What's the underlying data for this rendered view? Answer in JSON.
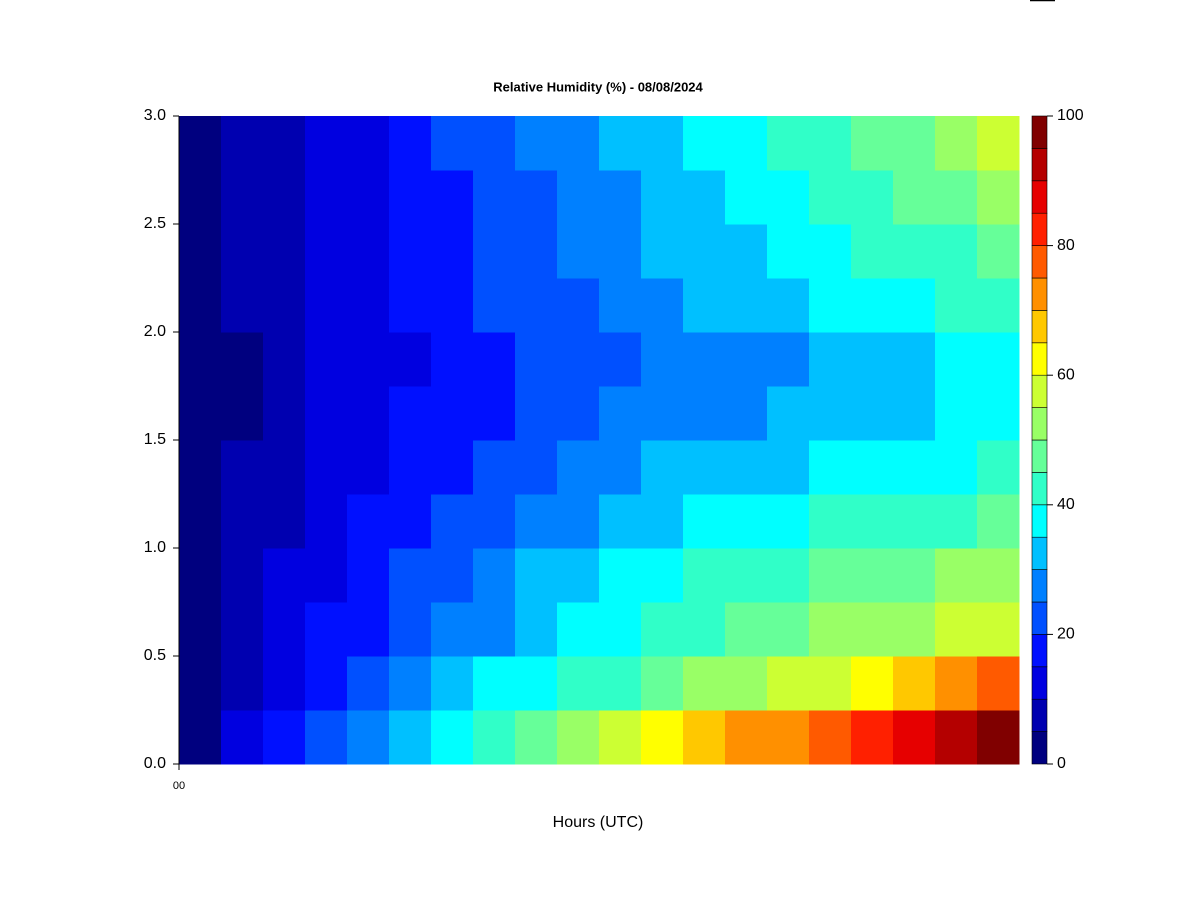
{
  "chart_data": {
    "type": "contour",
    "title": "Relative Humidity (%) - 08/08/2024",
    "x_label": "Hours (UTC)",
    "xlim": [
      0,
      20
    ],
    "xticks": [
      {
        "value": 0,
        "label": "00"
      }
    ],
    "ylim": [
      0,
      3
    ],
    "yticks": [
      {
        "value": 0,
        "label": "0.0"
      },
      {
        "value": 0.5,
        "label": "0.5"
      },
      {
        "value": 1,
        "label": "1.0"
      },
      {
        "value": 1.5,
        "label": "1.5"
      },
      {
        "value": 2,
        "label": "2.0"
      },
      {
        "value": 2.5,
        "label": "2.5"
      },
      {
        "value": 3,
        "label": "3.0"
      }
    ],
    "z": [
      [
        4,
        10,
        16,
        21,
        27,
        33,
        38,
        44,
        49,
        54,
        58,
        62,
        66,
        70,
        74,
        78,
        82,
        86,
        90,
        95
      ],
      [
        3,
        8,
        13,
        18,
        23,
        27,
        31,
        35,
        38,
        41,
        44,
        47,
        50,
        53,
        56,
        59,
        62,
        65,
        70,
        76
      ],
      [
        3,
        7,
        11,
        15,
        19,
        23,
        26,
        29,
        32,
        35,
        38,
        41,
        43,
        46,
        48,
        50,
        52,
        54,
        56,
        58
      ],
      [
        2,
        6,
        10,
        14,
        17,
        21,
        24,
        27,
        30,
        33,
        35,
        38,
        40,
        42,
        44,
        46,
        47,
        49,
        50,
        52
      ],
      [
        2,
        6,
        9,
        12,
        15,
        18,
        21,
        24,
        26,
        29,
        31,
        33,
        35,
        37,
        38,
        40,
        41,
        42,
        44,
        46
      ],
      [
        2,
        5,
        8,
        11,
        14,
        17,
        19,
        21,
        24,
        26,
        28,
        30,
        31,
        33,
        34,
        35,
        36,
        37,
        38,
        40
      ],
      [
        2,
        4,
        7,
        10,
        13,
        15,
        17,
        19,
        21,
        23,
        25,
        27,
        28,
        29,
        30,
        31,
        32,
        34,
        35,
        37
      ],
      [
        2,
        4,
        7,
        10,
        12,
        14,
        16,
        18,
        20,
        22,
        24,
        26,
        27,
        28,
        29,
        31,
        32,
        33,
        35,
        36
      ],
      [
        2,
        5,
        8,
        10,
        13,
        15,
        18,
        20,
        22,
        24,
        27,
        29,
        30,
        32,
        33,
        35,
        36,
        38,
        40,
        43
      ],
      [
        2,
        5,
        8,
        11,
        13,
        16,
        18,
        21,
        23,
        26,
        28,
        30,
        32,
        34,
        36,
        38,
        40,
        42,
        44,
        46
      ],
      [
        2,
        5,
        8,
        11,
        14,
        17,
        19,
        22,
        24,
        27,
        29,
        32,
        34,
        36,
        38,
        40,
        42,
        45,
        48,
        51
      ],
      [
        3,
        5,
        8,
        12,
        14,
        17,
        20,
        23,
        25,
        28,
        31,
        33,
        35,
        38,
        40,
        42,
        45,
        48,
        51,
        55
      ]
    ],
    "levels": [
      0,
      5,
      10,
      15,
      20,
      25,
      30,
      35,
      40,
      45,
      50,
      55,
      60,
      65,
      70,
      75,
      80,
      85,
      90,
      95,
      100
    ],
    "colors": [
      "#00007f",
      "#0000b0",
      "#0000e0",
      "#0010ff",
      "#0050ff",
      "#0080ff",
      "#00c0ff",
      "#00ffff",
      "#30ffc8",
      "#66ff99",
      "#99ff66",
      "#ccff33",
      "#ffff00",
      "#ffc800",
      "#ff9000",
      "#ff5a00",
      "#ff2000",
      "#e60000",
      "#b40000",
      "#800000"
    ],
    "colorbar_ticks": [
      0,
      20,
      40,
      60,
      80,
      100
    ]
  }
}
